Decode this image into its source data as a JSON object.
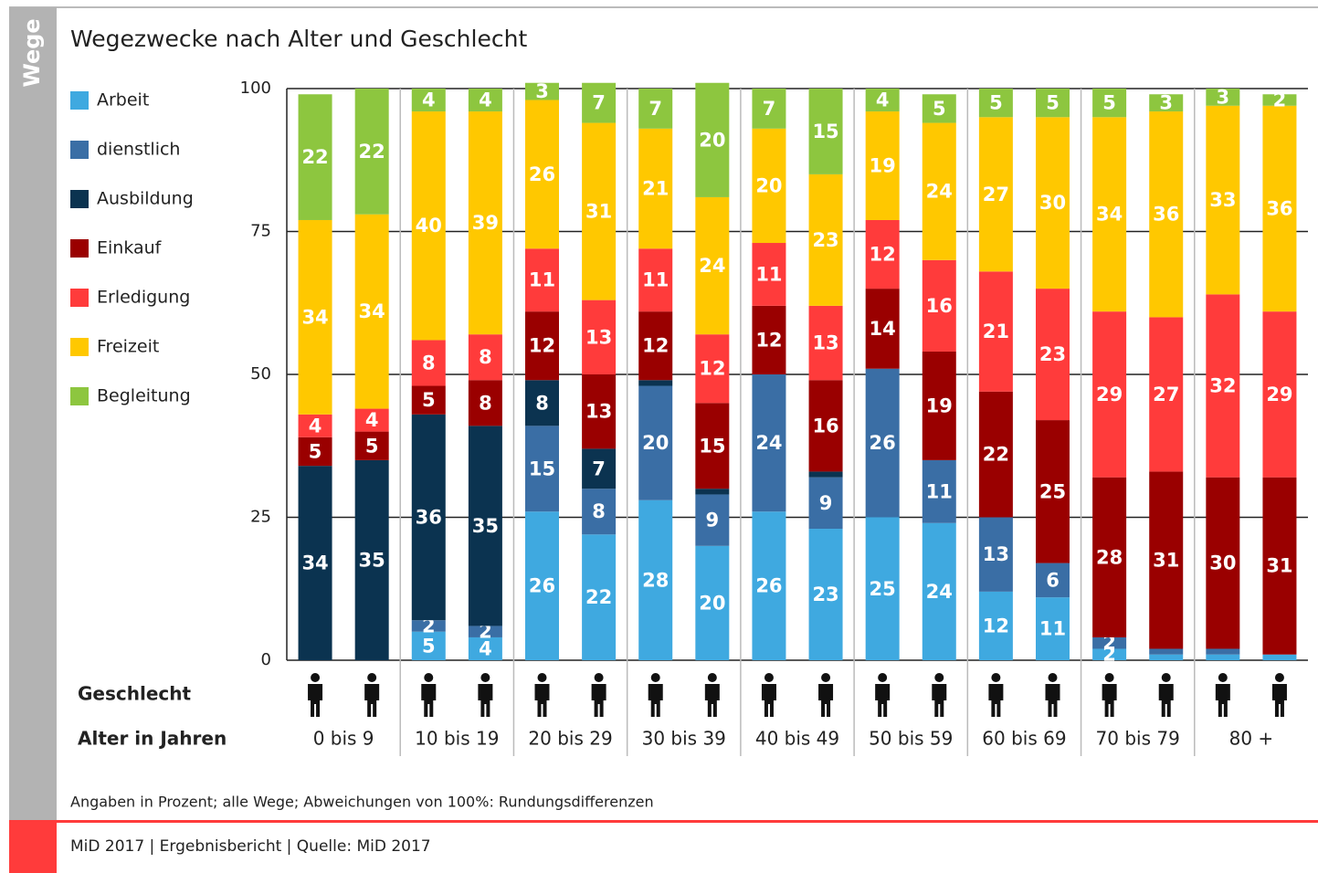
{
  "side_label": "Wege",
  "chart_data": {
    "type": "stacked_bar",
    "title": "Wegezwecke nach Alter und Geschlecht",
    "sex_row_label": "Geschlecht",
    "age_row_label": "Alter in Jahren",
    "groups": [
      "0 bis 9",
      "10 bis 19",
      "20 bis 29",
      "30 bis 39",
      "40 bis 49",
      "50 bis 59",
      "60 bis 69",
      "70 bis 79",
      "80 +"
    ],
    "ylim": [
      0,
      100
    ],
    "yticks": [
      0,
      25,
      50,
      75,
      100
    ],
    "grid": true,
    "legend": "left",
    "series": [
      {
        "name": "Arbeit",
        "color": "#3fa9e0",
        "values": [
          0,
          0,
          5,
          4,
          26,
          22,
          28,
          20,
          26,
          23,
          25,
          24,
          12,
          11,
          2,
          1,
          1,
          1
        ]
      },
      {
        "name": "dienstlich",
        "color": "#3a6ea5",
        "values": [
          0,
          0,
          2,
          2,
          15,
          8,
          20,
          9,
          24,
          9,
          26,
          11,
          13,
          6,
          2,
          1,
          1,
          0
        ]
      },
      {
        "name": "Ausbildung",
        "color": "#0b3350",
        "values": [
          34,
          35,
          36,
          35,
          8,
          7,
          1,
          1,
          0,
          1,
          0,
          0,
          0,
          0,
          0,
          0,
          0,
          0
        ]
      },
      {
        "name": "Einkauf",
        "color": "#9a0000",
        "values": [
          5,
          5,
          5,
          8,
          12,
          13,
          12,
          15,
          12,
          16,
          14,
          19,
          22,
          25,
          28,
          31,
          30,
          31
        ]
      },
      {
        "name": "Erledigung",
        "color": "#ff3b3b",
        "values": [
          4,
          4,
          8,
          8,
          11,
          13,
          11,
          12,
          11,
          13,
          12,
          16,
          21,
          23,
          29,
          27,
          32,
          29
        ]
      },
      {
        "name": "Freizeit",
        "color": "#ffc800",
        "values": [
          34,
          34,
          40,
          39,
          26,
          31,
          21,
          24,
          20,
          23,
          19,
          24,
          27,
          30,
          34,
          36,
          33,
          36
        ]
      },
      {
        "name": "Begleitung",
        "color": "#8dc63f",
        "values": [
          22,
          22,
          4,
          4,
          3,
          7,
          7,
          20,
          7,
          15,
          4,
          5,
          5,
          5,
          5,
          3,
          3,
          2
        ]
      }
    ],
    "note": "Angaben in Prozent; alle Wege; Abweichungen von 100%: Rundungsdifferenzen"
  },
  "footer": "MiD 2017 | Ergebnisbericht | Quelle: MiD 2017"
}
